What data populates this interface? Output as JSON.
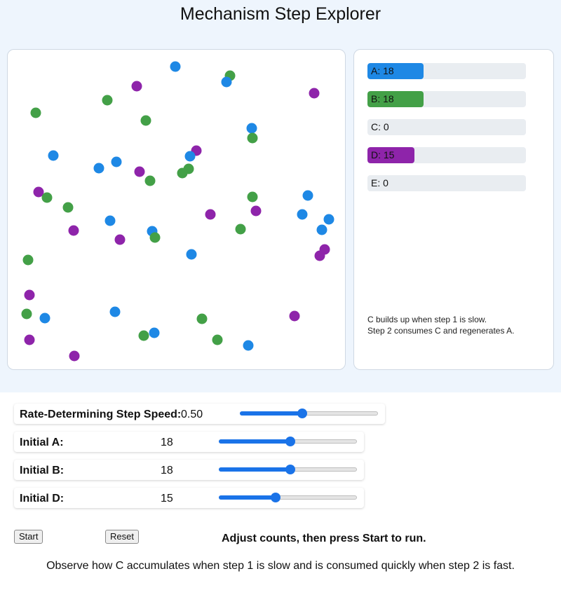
{
  "title": "Mechanism Step Explorer",
  "colors": {
    "A": "#1e88e5",
    "B": "#43a047",
    "C": "#f57c00",
    "D": "#8e24aa",
    "E": "#e53935",
    "slider_accent": "#1a73e8"
  },
  "species_counts": [
    {
      "label": "A: 18",
      "species": "A",
      "count": 18,
      "fraction": 0.354
    },
    {
      "label": "B: 18",
      "species": "B",
      "count": 18,
      "fraction": 0.354
    },
    {
      "label": "C: 0",
      "species": "C",
      "count": 0,
      "fraction": 0
    },
    {
      "label": "D: 15",
      "species": "D",
      "count": 15,
      "fraction": 0.296
    },
    {
      "label": "E: 0",
      "species": "E",
      "count": 0,
      "fraction": 0
    }
  ],
  "note_line1": "C builds up when step 1 is slow.",
  "note_line2": "Step 2 consumes C and regenerates A.",
  "controls": {
    "rds": {
      "label": "Rate-Determining Step Speed:",
      "value": "0.50",
      "fraction": 0.45
    },
    "initA": {
      "label": "Initial A:",
      "value": "18",
      "fraction": 0.52
    },
    "initB": {
      "label": "Initial B:",
      "value": "18",
      "fraction": 0.52
    },
    "initD": {
      "label": "Initial D:",
      "value": "15",
      "fraction": 0.41
    }
  },
  "buttons": {
    "start": "Start",
    "reset": "Reset"
  },
  "status": "Adjust counts, then press Start to run.",
  "footer": "Observe how C accumulates when step 1 is slow and is consumed quickly when step 2 is fast."
}
